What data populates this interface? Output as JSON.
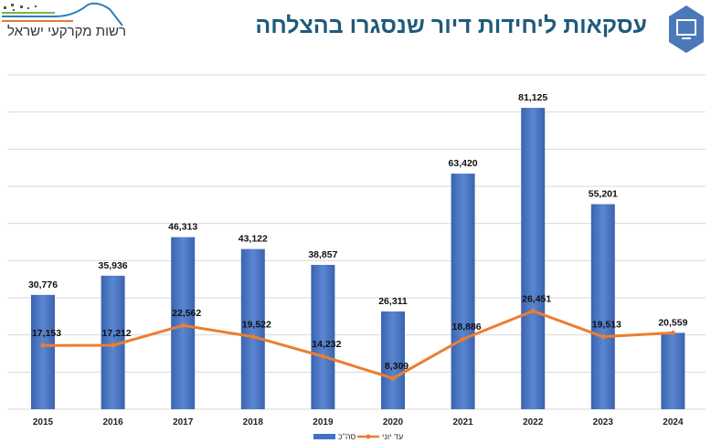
{
  "header": {
    "title": "עסקאות ליחידות דיור שנסגרו בהצלחה",
    "logo_text": "רשות מקרקעי ישראל"
  },
  "chart_data": {
    "type": "bar",
    "title": "עסקאות ליחידות דיור שנסגרו בהצלחה",
    "categories": [
      "2015",
      "2016",
      "2017",
      "2018",
      "2019",
      "2020",
      "2021",
      "2022",
      "2023",
      "2024"
    ],
    "series": [
      {
        "name": "סה\"כ",
        "type": "bar",
        "color": "#4472c4",
        "values": [
          30776,
          35936,
          46313,
          43122,
          38857,
          26311,
          63420,
          81125,
          55201,
          20559
        ]
      },
      {
        "name": "עד יוני",
        "type": "line",
        "color": "#ed7d31",
        "values": [
          17153,
          17212,
          22562,
          19522,
          14232,
          8309,
          18886,
          26451,
          19513,
          20559
        ]
      }
    ],
    "ylim": [
      0,
      90000
    ],
    "grid": true,
    "legend": "bottom"
  }
}
